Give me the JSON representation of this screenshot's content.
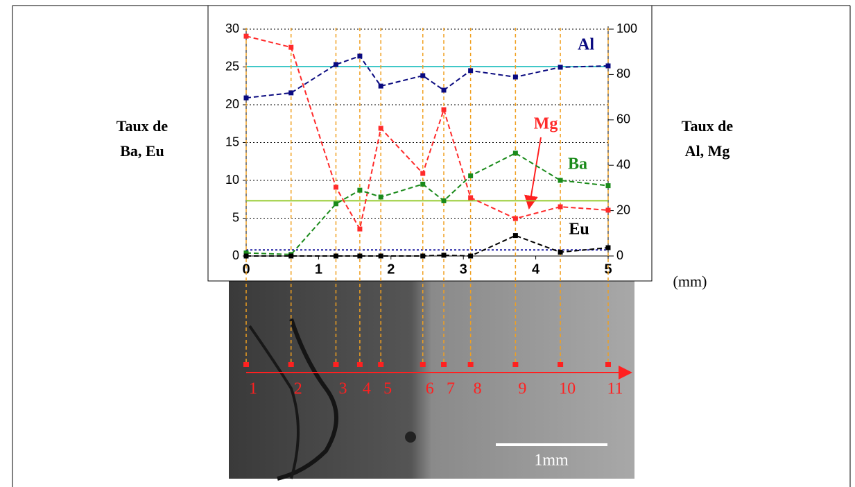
{
  "chart_data": {
    "type": "line",
    "x_unit": "(mm)",
    "y_label": [
      "Taux de",
      "Ba, Eu"
    ],
    "y2_label": [
      "Taux de",
      "Al, Mg"
    ],
    "x": [
      0,
      0.62,
      1.24,
      1.57,
      1.86,
      2.44,
      2.73,
      3.1,
      3.72,
      4.34,
      5.0
    ],
    "xlim": [
      0,
      5
    ],
    "xticks": [
      0,
      1,
      2,
      3,
      4,
      5
    ],
    "ylim": [
      0,
      30
    ],
    "yticks": [
      0,
      5,
      10,
      15,
      20,
      25,
      30
    ],
    "y2lim": [
      0,
      100
    ],
    "y2ticks": [
      0,
      20,
      40,
      60,
      80,
      100
    ],
    "grid": true,
    "series": [
      {
        "name": "Al",
        "color": "#0a0a80",
        "axis": "y2",
        "values": [
          69.7,
          71.9,
          84.4,
          88.1,
          74.9,
          79.5,
          73.1,
          81.7,
          78.9,
          83.2,
          83.8
        ]
      },
      {
        "name": "Mg",
        "color": "#ff2a2a",
        "axis": "y2",
        "values": [
          96.9,
          92.0,
          30.3,
          11.9,
          56.3,
          36.4,
          64.5,
          25.7,
          16.5,
          21.7,
          20.2
        ]
      },
      {
        "name": "Ba",
        "color": "#1a8a1a",
        "axis": "y",
        "values": [
          0.4,
          0.2,
          6.9,
          8.7,
          7.8,
          9.5,
          7.3,
          10.6,
          13.6,
          10.0,
          9.3
        ]
      },
      {
        "name": "Eu",
        "color": "#000000",
        "axis": "y",
        "values": [
          0,
          0,
          0,
          0,
          0,
          0,
          0.1,
          0,
          2.7,
          0.5,
          1.1
        ]
      }
    ],
    "reference_lines": [
      {
        "axis": "y2",
        "value": 83.5,
        "color": "#40c8c8"
      },
      {
        "axis": "y",
        "value": 7.3,
        "color": "#99cc33"
      },
      {
        "axis": "y",
        "value": 0.8,
        "color": "#1a1aa0"
      }
    ]
  },
  "micrograph": {
    "point_labels": [
      "1",
      "2",
      "3",
      "4",
      "5",
      "6",
      "7",
      "8",
      "9",
      "10",
      "11"
    ],
    "scale_bar": "1mm"
  }
}
